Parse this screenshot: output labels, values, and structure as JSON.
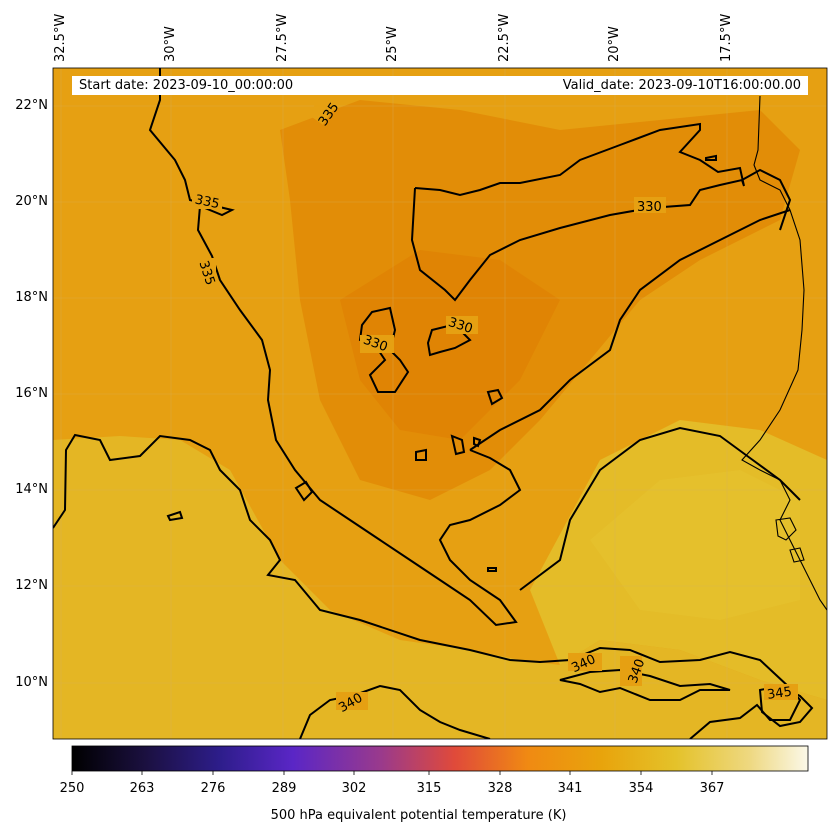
{
  "header": {
    "start_date": "Start date: 2023-09-10_00:00:00",
    "valid_date": "Valid_date: 2023-09-10T16:00:00.00"
  },
  "axes": {
    "lon_labels": [
      "32.5°W",
      "30°W",
      "27.5°W",
      "25°W",
      "22.5°W",
      "20°W",
      "17.5°W"
    ],
    "lat_labels": [
      "22°N",
      "20°N",
      "18°N",
      "16°N",
      "14°N",
      "12°N",
      "10°N"
    ]
  },
  "contour_labels": [
    "335",
    "335",
    "335",
    "330",
    "330",
    "330",
    "340",
    "340",
    "340",
    "345"
  ],
  "colorbar": {
    "ticks": [
      "250",
      "263",
      "276",
      "289",
      "302",
      "315",
      "328",
      "341",
      "354",
      "367"
    ],
    "label": "500 hPa equivalent potential temperature (K)",
    "colors": [
      "#000000",
      "#1b1040",
      "#2d1d8a",
      "#5a26c6",
      "#9a3a8c",
      "#e04a3a",
      "#f08a12",
      "#e8a40c",
      "#e4c22a",
      "#eed880",
      "#fbf8e8"
    ]
  },
  "map_colors": {
    "base": "#e6a012",
    "cool": "#e08a06",
    "warm": "#e4bc28",
    "contour": "#000000"
  }
}
